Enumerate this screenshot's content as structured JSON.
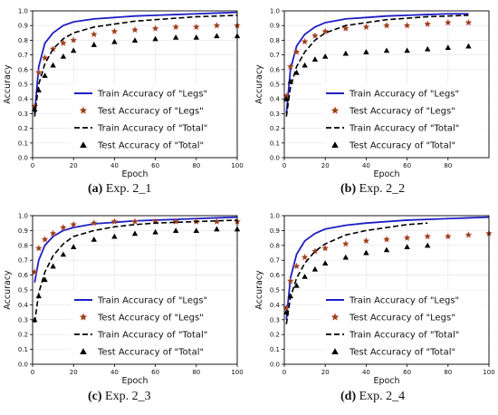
{
  "chart_data": [
    {
      "type": "line",
      "caption_letter": "(a)",
      "caption_text": "Exp. 2_1",
      "xlabel": "Epoch",
      "ylabel": "Accuracy",
      "xlim": [
        0,
        100
      ],
      "ylim": [
        0.0,
        1.0
      ],
      "xticks": [
        "0",
        "20",
        "40",
        "60",
        "80",
        "100"
      ],
      "yticks": [
        "0.0",
        "0.1",
        "0.2",
        "0.3",
        "0.4",
        "0.5",
        "0.6",
        "0.7",
        "0.8",
        "0.9",
        "1.0"
      ],
      "grid": true,
      "legend_position": "lower-right",
      "series": [
        {
          "name": "Train Accuracy of \"Legs\"",
          "style": "solid-line",
          "color": "#1f1fc4",
          "x": [
            1,
            3,
            6,
            10,
            15,
            20,
            30,
            40,
            50,
            60,
            70,
            80,
            90,
            100
          ],
          "y": [
            0.3,
            0.62,
            0.78,
            0.85,
            0.9,
            0.925,
            0.945,
            0.955,
            0.965,
            0.97,
            0.975,
            0.98,
            0.985,
            0.99
          ]
        },
        {
          "name": "Test Accuracy of \"Legs\"",
          "style": "star-marker",
          "color": "#8b4513",
          "x": [
            1,
            3,
            6,
            10,
            15,
            20,
            30,
            40,
            50,
            60,
            70,
            80,
            90,
            100
          ],
          "y": [
            0.35,
            0.58,
            0.68,
            0.74,
            0.78,
            0.8,
            0.84,
            0.86,
            0.87,
            0.88,
            0.89,
            0.89,
            0.9,
            0.9
          ]
        },
        {
          "name": "Train Accuracy of \"Total\"",
          "style": "dashed-line",
          "color": "#000000",
          "x": [
            1,
            3,
            6,
            10,
            15,
            20,
            30,
            40,
            50,
            60,
            70,
            80,
            90,
            100
          ],
          "y": [
            0.28,
            0.5,
            0.64,
            0.74,
            0.81,
            0.85,
            0.89,
            0.91,
            0.93,
            0.94,
            0.95,
            0.96,
            0.965,
            0.97
          ]
        },
        {
          "name": "Test Accuracy of \"Total\"",
          "style": "triangle-marker",
          "color": "#000000",
          "x": [
            1,
            3,
            6,
            10,
            15,
            20,
            30,
            40,
            50,
            60,
            70,
            80,
            90,
            100
          ],
          "y": [
            0.33,
            0.46,
            0.56,
            0.63,
            0.69,
            0.73,
            0.77,
            0.79,
            0.8,
            0.81,
            0.82,
            0.82,
            0.83,
            0.83
          ]
        }
      ]
    },
    {
      "type": "line",
      "caption_letter": "(b)",
      "caption_text": "Exp. 2_2",
      "xlabel": "Epoch",
      "ylabel": "Accuracy",
      "xlim": [
        0,
        100
      ],
      "ylim": [
        0.0,
        1.0
      ],
      "xticks": [
        "0",
        "20",
        "40",
        "60",
        "80"
      ],
      "yticks": [
        "0.0",
        "0.1",
        "0.2",
        "0.3",
        "0.4",
        "0.5",
        "0.6",
        "0.7",
        "0.8",
        "0.9",
        "1.0"
      ],
      "grid": true,
      "legend_position": "lower-right",
      "series": [
        {
          "name": "Train Accuracy of \"Legs\"",
          "style": "solid-line",
          "color": "#1f1fc4",
          "x": [
            1,
            3,
            6,
            10,
            15,
            20,
            30,
            40,
            50,
            60,
            70,
            80,
            90
          ],
          "y": [
            0.3,
            0.6,
            0.76,
            0.84,
            0.89,
            0.92,
            0.945,
            0.955,
            0.965,
            0.97,
            0.975,
            0.98,
            0.98
          ]
        },
        {
          "name": "Test Accuracy of \"Legs\"",
          "style": "star-marker",
          "color": "#8b4513",
          "x": [
            1,
            3,
            6,
            10,
            15,
            20,
            30,
            40,
            50,
            60,
            70,
            80,
            90
          ],
          "y": [
            0.42,
            0.62,
            0.72,
            0.79,
            0.83,
            0.86,
            0.88,
            0.89,
            0.9,
            0.9,
            0.91,
            0.92,
            0.92
          ]
        },
        {
          "name": "Train Accuracy of \"Total\"",
          "style": "dashed-line",
          "color": "#000000",
          "x": [
            1,
            3,
            6,
            10,
            15,
            20,
            30,
            40,
            50,
            60,
            70,
            80,
            90
          ],
          "y": [
            0.28,
            0.48,
            0.62,
            0.72,
            0.8,
            0.85,
            0.9,
            0.92,
            0.94,
            0.95,
            0.96,
            0.965,
            0.97
          ]
        },
        {
          "name": "Test Accuracy of \"Total\"",
          "style": "triangle-marker",
          "color": "#000000",
          "x": [
            1,
            3,
            6,
            10,
            15,
            20,
            30,
            40,
            50,
            60,
            70,
            80,
            90
          ],
          "y": [
            0.4,
            0.52,
            0.58,
            0.63,
            0.67,
            0.69,
            0.71,
            0.72,
            0.73,
            0.73,
            0.74,
            0.75,
            0.76
          ]
        }
      ]
    },
    {
      "type": "line",
      "caption_letter": "(c)",
      "caption_text": "Exp. 2_3",
      "xlabel": "Epoch",
      "ylabel": "Accuracy",
      "xlim": [
        0,
        100
      ],
      "ylim": [
        0.0,
        1.0
      ],
      "xticks": [
        "0",
        "20",
        "40",
        "60",
        "80",
        "100"
      ],
      "yticks": [
        "0.0",
        "0.1",
        "0.2",
        "0.3",
        "0.4",
        "0.5",
        "0.6",
        "0.7",
        "0.8",
        "0.9",
        "1.0"
      ],
      "grid": true,
      "legend_position": "lower-right",
      "series": [
        {
          "name": "Train Accuracy of \"Legs\"",
          "style": "solid-line",
          "color": "#1f1fc4",
          "x": [
            1,
            3,
            6,
            10,
            15,
            20,
            30,
            40,
            50,
            60,
            70,
            80,
            90,
            100
          ],
          "y": [
            0.55,
            0.7,
            0.8,
            0.86,
            0.9,
            0.92,
            0.945,
            0.955,
            0.965,
            0.97,
            0.975,
            0.98,
            0.985,
            0.99
          ]
        },
        {
          "name": "Test Accuracy of \"Legs\"",
          "style": "star-marker",
          "color": "#8b4513",
          "x": [
            1,
            3,
            6,
            10,
            15,
            20,
            30,
            40,
            50,
            60,
            70,
            80,
            90,
            100
          ],
          "y": [
            0.62,
            0.78,
            0.84,
            0.88,
            0.92,
            0.94,
            0.95,
            0.96,
            0.96,
            0.96,
            0.96,
            0.96,
            0.96,
            0.96
          ]
        },
        {
          "name": "Train Accuracy of \"Total\"",
          "style": "dashed-line",
          "color": "#000000",
          "x": [
            1,
            3,
            6,
            10,
            15,
            20,
            30,
            40,
            50,
            60,
            70,
            80,
            90,
            100
          ],
          "y": [
            0.28,
            0.48,
            0.62,
            0.73,
            0.81,
            0.86,
            0.9,
            0.925,
            0.94,
            0.95,
            0.955,
            0.96,
            0.965,
            0.97
          ]
        },
        {
          "name": "Test Accuracy of \"Total\"",
          "style": "triangle-marker",
          "color": "#000000",
          "x": [
            1,
            3,
            6,
            10,
            15,
            20,
            30,
            40,
            50,
            60,
            70,
            80,
            90,
            100
          ],
          "y": [
            0.3,
            0.46,
            0.57,
            0.66,
            0.74,
            0.79,
            0.84,
            0.86,
            0.88,
            0.89,
            0.9,
            0.9,
            0.91,
            0.91
          ]
        }
      ]
    },
    {
      "type": "line",
      "caption_letter": "(d)",
      "caption_text": "Exp. 2_4",
      "xlabel": "Epoch",
      "ylabel": "Accuracy",
      "xlim": [
        0,
        100
      ],
      "ylim": [
        0.0,
        1.0
      ],
      "xticks": [
        "0",
        "20",
        "40",
        "60",
        "80",
        "100"
      ],
      "yticks": [
        "0.0",
        "0.1",
        "0.2",
        "0.3",
        "0.4",
        "0.5",
        "0.6",
        "0.7",
        "0.8",
        "0.9",
        "1.0"
      ],
      "grid": true,
      "legend_position": "lower-right",
      "series": [
        {
          "name": "Train Accuracy of \"Legs\"",
          "style": "solid-line",
          "color": "#1f1fc4",
          "x": [
            1,
            3,
            6,
            10,
            15,
            20,
            30,
            40,
            50,
            60,
            70,
            80,
            90,
            100
          ],
          "y": [
            0.3,
            0.58,
            0.74,
            0.83,
            0.88,
            0.91,
            0.935,
            0.95,
            0.96,
            0.97,
            0.975,
            0.98,
            0.985,
            0.99
          ]
        },
        {
          "name": "Test Accuracy of \"Legs\"",
          "style": "star-marker",
          "color": "#8b4513",
          "x": [
            1,
            3,
            6,
            10,
            15,
            20,
            30,
            40,
            50,
            60,
            70,
            80,
            90,
            100
          ],
          "y": [
            0.38,
            0.56,
            0.66,
            0.72,
            0.76,
            0.78,
            0.81,
            0.83,
            0.84,
            0.85,
            0.86,
            0.86,
            0.87,
            0.88
          ]
        },
        {
          "name": "Train Accuracy of \"Total\"",
          "style": "dashed-line",
          "color": "#000000",
          "x": [
            1,
            3,
            6,
            10,
            15,
            20,
            30,
            40,
            50,
            60,
            70
          ],
          "y": [
            0.27,
            0.45,
            0.58,
            0.68,
            0.76,
            0.81,
            0.87,
            0.9,
            0.92,
            0.94,
            0.95
          ]
        },
        {
          "name": "Test Accuracy of \"Total\"",
          "style": "triangle-marker",
          "color": "#000000",
          "x": [
            1,
            3,
            6,
            10,
            15,
            20,
            30,
            40,
            50,
            60,
            70
          ],
          "y": [
            0.35,
            0.46,
            0.53,
            0.59,
            0.64,
            0.68,
            0.72,
            0.75,
            0.77,
            0.79,
            0.8
          ]
        }
      ]
    }
  ]
}
